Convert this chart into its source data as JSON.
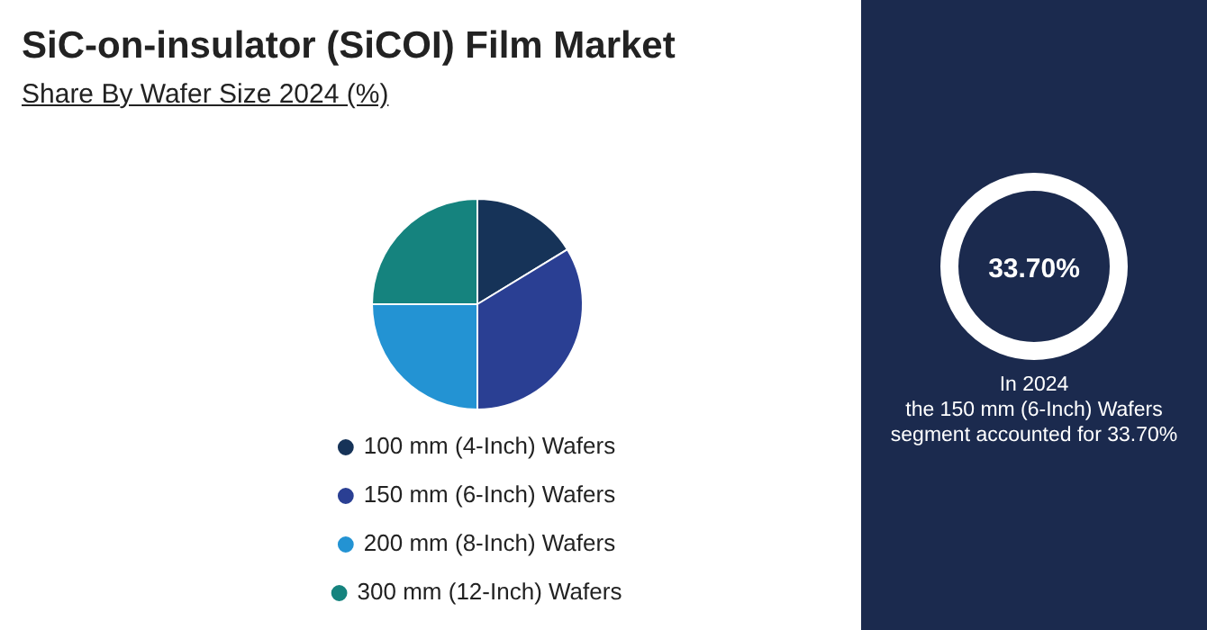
{
  "chart_data": {
    "type": "pie",
    "title": "SiC-on-insulator (SiCOI) Film Market",
    "subtitle": "Share By Wafer Size 2024 (%)",
    "categories": [
      "100 mm (4-Inch) Wafers",
      "150 mm (6-Inch) Wafers",
      "200 mm (8-Inch) Wafers",
      "300 mm (12-Inch) Wafers"
    ],
    "values": [
      16.3,
      33.7,
      25.0,
      25.0
    ],
    "colors": [
      "#163358",
      "#2a3f93",
      "#2393d3",
      "#15837e"
    ],
    "legend": "bottom",
    "annotations": [
      "33.70%",
      "In 2024\nthe 150 mm (6-Inch) Wafers\nsegment accounted for 33.70%"
    ]
  }
}
